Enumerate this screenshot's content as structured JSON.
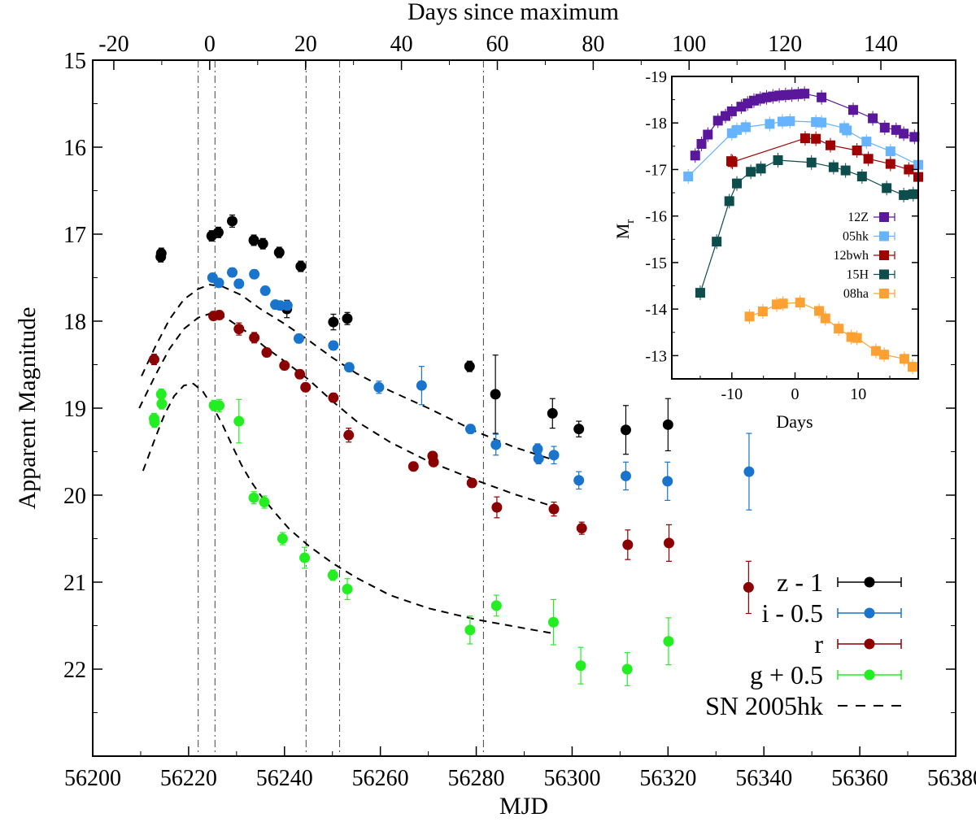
{
  "chart_data": [
    {
      "type": "scatter",
      "title": "",
      "xlabel": "MJD",
      "ylabel": "Apparent Magnitude",
      "x2label": "Days since maximum",
      "xlim": [
        56200,
        56380
      ],
      "ylim": [
        15,
        23
      ],
      "y_inverted": true,
      "x_ticks": [
        56200,
        56220,
        56240,
        56260,
        56280,
        56300,
        56320,
        56340,
        56360,
        56380
      ],
      "y_ticks": [
        15,
        16,
        17,
        18,
        19,
        20,
        21,
        22
      ],
      "x2_ticks": [
        -20,
        0,
        20,
        40,
        60,
        80,
        100,
        120,
        140
      ],
      "x2_offset_mjd": 56224.4,
      "vertical_lines_mjd": [
        56222,
        56225.5,
        56244.5,
        56251.5,
        56281.5
      ],
      "legend_position": "bottom-right",
      "series": [
        {
          "name": "z - 1",
          "color": "#000000",
          "x": [
            56214.2,
            56214.3,
            56224.8,
            56226.2,
            56229.1,
            56233.6,
            56235.5,
            56238.9,
            56240.5,
            56243.4,
            56250.2,
            56253.1,
            56278.6,
            56284,
            56295.9,
            56301.4,
            56311.2,
            56320
          ],
          "y": [
            17.26,
            17.22,
            17.02,
            16.98,
            16.85,
            17.07,
            17.11,
            17.21,
            17.86,
            17.37,
            18.01,
            17.97,
            18.52,
            18.84,
            19.06,
            19.24,
            19.25,
            19.19
          ],
          "err": [
            0.06,
            0.06,
            0.06,
            0.06,
            0.07,
            0.06,
            0.06,
            0.06,
            0.1,
            0.06,
            0.09,
            0.07,
            0.06,
            0.45,
            0.17,
            0.09,
            0.28,
            0.3
          ]
        },
        {
          "name": "i - 0.5",
          "color": "#1874cd",
          "x": [
            56225,
            56226.3,
            56229.1,
            56230.5,
            56233.7,
            56236,
            56238.1,
            56239.1,
            56240.6,
            56243,
            56250.2,
            56253.5,
            56259.7,
            56268.6,
            56278.8,
            56284.1,
            56292.8,
            56293,
            56296.2,
            56301.4,
            56311.2,
            56319.9,
            56336.9
          ],
          "y": [
            17.5,
            17.56,
            17.44,
            17.57,
            17.46,
            17.65,
            17.81,
            17.82,
            17.82,
            18.2,
            18.28,
            18.53,
            18.76,
            18.74,
            19.24,
            19.42,
            19.47,
            19.58,
            19.54,
            19.83,
            19.78,
            19.84,
            19.73
          ],
          "err": [
            0.05,
            0.05,
            0.05,
            0.05,
            0.05,
            0.05,
            0.05,
            0.05,
            0.05,
            0.05,
            0.05,
            0.05,
            0.07,
            0.22,
            0.05,
            0.12,
            0.06,
            0.06,
            0.1,
            0.1,
            0.16,
            0.22,
            0.44
          ]
        },
        {
          "name": "r",
          "color": "#8b0000",
          "x": [
            56212.8,
            56225.2,
            56226.4,
            56230.5,
            56233.7,
            56236.3,
            56240,
            56243.2,
            56244.4,
            56250.2,
            56253.4,
            56266.9,
            56270.9,
            56271.1,
            56279.1,
            56284.3,
            56296.2,
            56302,
            56311.6,
            56320.2,
            56336.8
          ],
          "y": [
            18.44,
            17.94,
            17.93,
            18.09,
            18.19,
            18.36,
            18.51,
            18.61,
            18.76,
            18.88,
            19.31,
            19.67,
            19.55,
            19.62,
            19.86,
            20.14,
            20.16,
            20.38,
            20.57,
            20.55,
            21.06
          ],
          "err": [
            0.06,
            0.05,
            0.05,
            0.07,
            0.06,
            0.05,
            0.05,
            0.05,
            0.05,
            0.05,
            0.08,
            0.05,
            0.05,
            0.05,
            0.05,
            0.12,
            0.08,
            0.07,
            0.17,
            0.21,
            0.3
          ]
        },
        {
          "name": "g + 0.5",
          "color": "#22ee22",
          "x": [
            56212.8,
            56212.9,
            56214.3,
            56214.4,
            56225.3,
            56226.4,
            56230.5,
            56233.6,
            56235.8,
            56239.6,
            56244.2,
            56250.1,
            56253.1,
            56278.7,
            56284.2,
            56296.1,
            56301.8,
            56311.5,
            56320.1
          ],
          "y": [
            19.12,
            19.16,
            18.84,
            18.95,
            18.97,
            18.97,
            19.15,
            20.03,
            20.08,
            20.5,
            20.72,
            20.92,
            21.08,
            21.55,
            21.27,
            21.46,
            21.96,
            22.0,
            21.68
          ],
          "err": [
            0.06,
            0.06,
            0.06,
            0.06,
            0.06,
            0.07,
            0.25,
            0.07,
            0.07,
            0.07,
            0.12,
            0.06,
            0.12,
            0.16,
            0.12,
            0.26,
            0.21,
            0.19,
            0.27
          ]
        }
      ],
      "template_curves": {
        "name": "SN 2005hk",
        "style": "dashed",
        "color": "#000000",
        "curves": [
          {
            "x": [
              56210.2,
              56213,
              56216,
              56219,
              56222,
              56224.4,
              56227,
              56231,
              56235,
              56240,
              56245,
              56250,
              56255,
              56262,
              56270,
              56280,
              56288,
              56296.4
            ],
            "y": [
              18.63,
              18.3,
              17.98,
              17.75,
              17.63,
              17.58,
              17.6,
              17.7,
              17.86,
              18.03,
              18.22,
              18.42,
              18.6,
              18.8,
              19.0,
              19.27,
              19.45,
              19.6
            ]
          },
          {
            "x": [
              56209.7,
              56213,
              56216,
              56219,
              56222,
              56225.2,
              56228,
              56232,
              56236,
              56240,
              56245,
              56250,
              56255,
              56262,
              56270,
              56280,
              56288,
              56296.1
            ],
            "y": [
              19.0,
              18.63,
              18.32,
              18.09,
              17.96,
              17.9,
              17.97,
              18.12,
              18.3,
              18.46,
              18.67,
              18.92,
              19.15,
              19.39,
              19.61,
              19.83,
              19.99,
              20.13
            ]
          },
          {
            "x": [
              56210.5,
              56213,
              56215,
              56217,
              56219,
              56221,
              56223,
              56225,
              56227,
              56229,
              56231,
              56233,
              56235,
              56238,
              56241,
              56245,
              56250,
              56255,
              56262,
              56270,
              56280,
              56290,
              56296.1
            ],
            "y": [
              19.72,
              19.35,
              19.07,
              18.86,
              18.74,
              18.72,
              18.81,
              18.98,
              19.18,
              19.42,
              19.65,
              19.84,
              20.0,
              20.2,
              20.39,
              20.58,
              20.78,
              20.95,
              21.15,
              21.3,
              21.43,
              21.53,
              21.59
            ]
          }
        ]
      }
    },
    {
      "type": "line",
      "title": "",
      "xlabel": "Days",
      "ylabel": "M",
      "ylabel_sub": "r",
      "xlim": [
        -19.5,
        19.5
      ],
      "ylim": [
        -12.5,
        -19
      ],
      "x_ticks": [
        -10,
        0,
        10
      ],
      "y_ticks": [
        -19,
        -18,
        -17,
        -16,
        -15,
        -14,
        -13
      ],
      "legend_position": "right",
      "series": [
        {
          "name": "12Z",
          "color": "#5a179b",
          "x": [
            -15.8,
            -14.8,
            -13.8,
            -12.2,
            -11,
            -10,
            -8.5,
            -7.5,
            -6.5,
            -5.5,
            -4.5,
            -3.5,
            -2.5,
            -1.5,
            -0.5,
            0.5,
            1.5,
            4.2,
            9.2,
            12.3,
            14.2,
            16,
            17.2,
            18.9
          ],
          "y": [
            -17.3,
            -17.55,
            -17.75,
            -18.05,
            -18.15,
            -18.25,
            -18.35,
            -18.42,
            -18.48,
            -18.52,
            -18.55,
            -18.57,
            -18.59,
            -18.6,
            -18.61,
            -18.62,
            -18.63,
            -18.55,
            -18.28,
            -18.1,
            -17.9,
            -17.85,
            -17.77,
            -17.7
          ]
        },
        {
          "name": "05hk",
          "color": "#66b3ff",
          "x": [
            -16.9,
            -10,
            -9.2,
            -7.8,
            -4,
            -2,
            -0.8,
            3.3,
            4.2,
            7.8,
            8.2,
            11.3,
            15.1,
            19.5
          ],
          "y": [
            -16.85,
            -17.78,
            -17.85,
            -17.91,
            -17.98,
            -18.03,
            -18.04,
            -18.02,
            -18.01,
            -17.89,
            -17.84,
            -17.6,
            -17.39,
            -17.1
          ]
        },
        {
          "name": "12bwh",
          "color": "#a00000",
          "x": [
            -10.1,
            -9.9,
            1.6,
            3.3,
            5.6,
            9.8,
            11.6,
            15.1,
            18,
            19.5
          ],
          "y": [
            -17.18,
            -17.16,
            -17.67,
            -17.66,
            -17.52,
            -17.41,
            -17.23,
            -17.12,
            -17.0,
            -16.84
          ]
        },
        {
          "name": "15H",
          "color": "#0d4e4c",
          "x": [
            -15,
            -12.4,
            -10.4,
            -9.2,
            -7,
            -5.4,
            -2.7,
            2.6,
            6.1,
            8,
            10.6,
            14.5,
            17.2,
            18.7
          ],
          "y": [
            -14.35,
            -15.45,
            -16.32,
            -16.7,
            -16.95,
            -17.02,
            -17.2,
            -17.15,
            -17.05,
            -16.98,
            -16.85,
            -16.6,
            -16.45,
            -16.47
          ]
        },
        {
          "name": "08ha",
          "color": "#ffa033",
          "x": [
            -7.2,
            -5.1,
            -2.9,
            -1.9,
            0.8,
            3.8,
            4.8,
            6.9,
            8.9,
            9.8,
            12.8,
            14.1,
            17.3,
            18.6
          ],
          "y": [
            -13.84,
            -13.95,
            -14.1,
            -14.12,
            -14.14,
            -13.96,
            -13.8,
            -13.58,
            -13.4,
            -13.38,
            -13.1,
            -13.02,
            -12.93,
            -12.76
          ]
        }
      ]
    }
  ]
}
